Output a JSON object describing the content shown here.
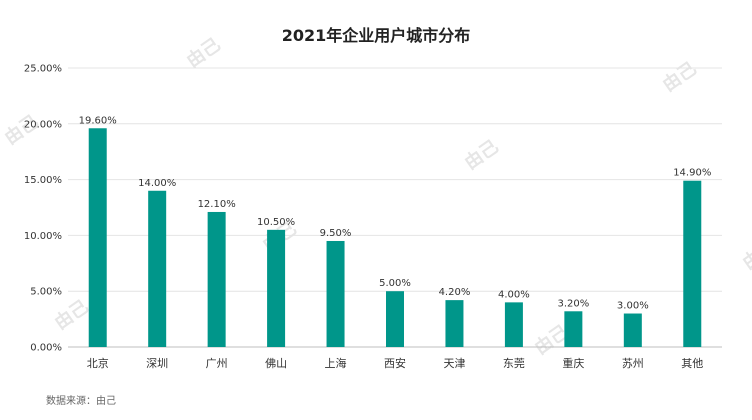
{
  "chart_data": {
    "type": "bar",
    "title": "2021年企业用户城市分布",
    "categories": [
      "北京",
      "深圳",
      "广州",
      "佛山",
      "上海",
      "西安",
      "天津",
      "东莞",
      "重庆",
      "苏州",
      "其他"
    ],
    "values": [
      19.6,
      14.0,
      12.1,
      10.5,
      9.5,
      5.0,
      4.2,
      4.0,
      3.2,
      3.0,
      14.9
    ],
    "data_labels": [
      "19.60%",
      "14.00%",
      "12.10%",
      "10.50%",
      "9.50%",
      "5.00%",
      "4.20%",
      "4.00%",
      "3.20%",
      "3.00%",
      "14.90%"
    ],
    "ylim": [
      0,
      25
    ],
    "yticks": [
      0,
      5,
      10,
      15,
      20,
      25
    ],
    "ytick_labels": [
      "0.00%",
      "5.00%",
      "10.00%",
      "15.00%",
      "20.00%",
      "25.00%"
    ],
    "xlabel": "",
    "ylabel": "",
    "grid": true,
    "bar_color": "#00968a"
  },
  "footer": {
    "source": "数据来源：由己"
  },
  "watermark": "由己"
}
